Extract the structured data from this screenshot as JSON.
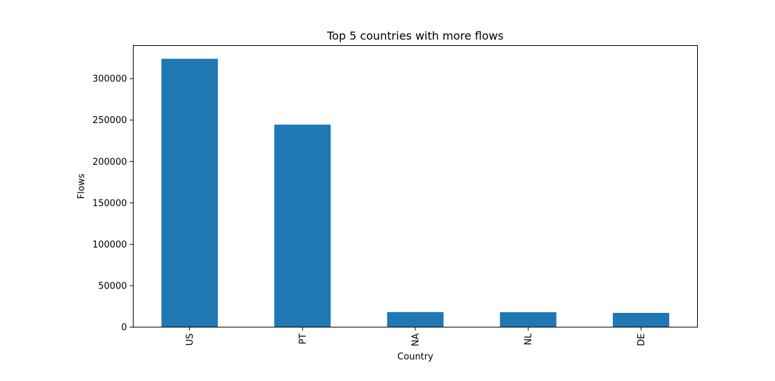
{
  "chart_data": {
    "type": "bar",
    "title": "Top 5 countries with more flows",
    "xlabel": "Country",
    "ylabel": "Flows",
    "categories": [
      "US",
      "PT",
      "NA",
      "NL",
      "DE"
    ],
    "values": [
      324000,
      244500,
      18200,
      18000,
      17200
    ],
    "ylim": [
      0,
      340000
    ],
    "yticks": [
      0,
      50000,
      100000,
      150000,
      200000,
      250000,
      300000
    ],
    "bar_color": "#1f77b4",
    "grid": false,
    "legend": "none"
  }
}
